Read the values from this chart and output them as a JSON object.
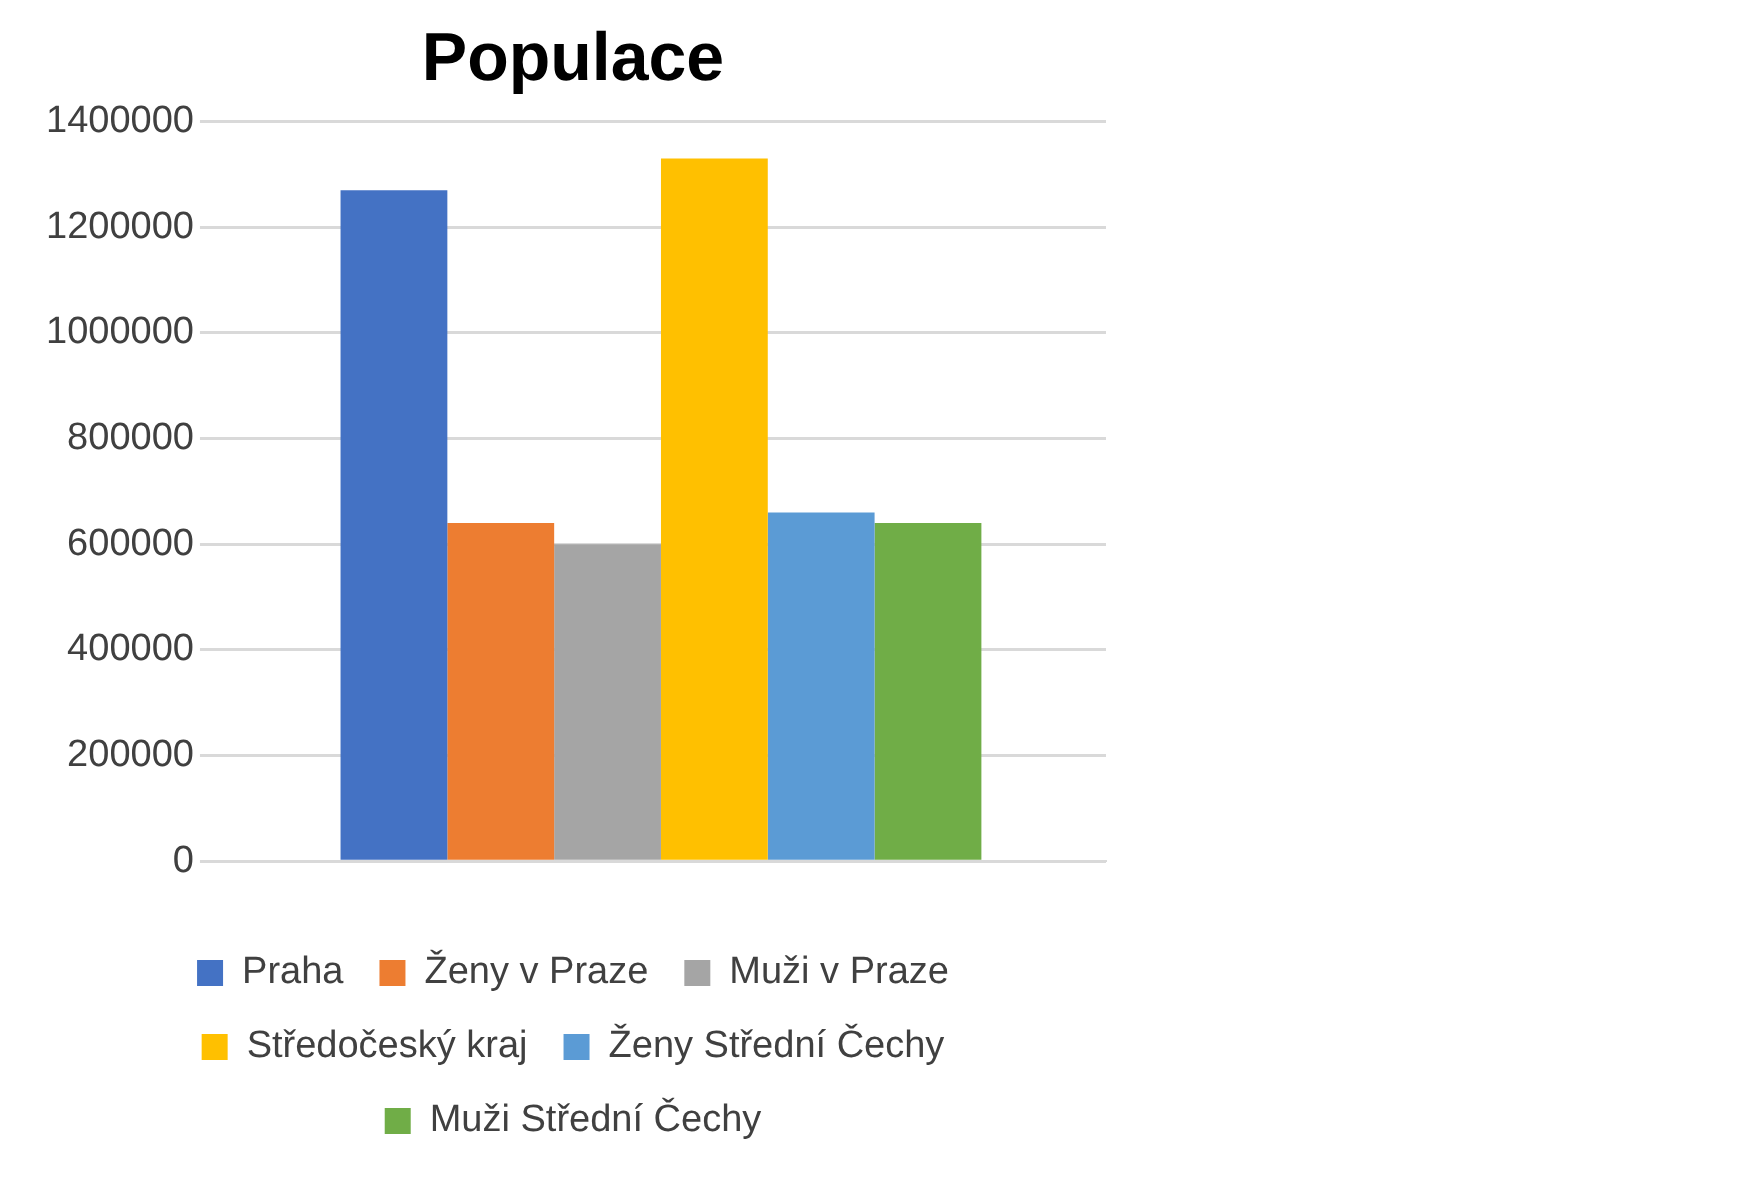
{
  "chart_data": {
    "type": "bar",
    "title": "Populace",
    "categories": [
      null
    ],
    "series": [
      {
        "name": "Praha",
        "color": "#4472c4",
        "values": [
          1270000
        ]
      },
      {
        "name": "Ženy v Praze",
        "color": "#ed7d31",
        "values": [
          640000
        ]
      },
      {
        "name": "Muži v Praze",
        "color": "#a5a5a5",
        "values": [
          600000
        ]
      },
      {
        "name": "Středočeský kraj",
        "color": "#ffc000",
        "values": [
          1330000
        ]
      },
      {
        "name": "Ženy Střední Čechy",
        "color": "#5b9bd5",
        "values": [
          660000
        ]
      },
      {
        "name": "Muži Střední Čechy",
        "color": "#70ad47",
        "values": [
          640000
        ]
      }
    ],
    "ylim": [
      0,
      1400000
    ],
    "yticks": [
      0,
      200000,
      400000,
      600000,
      800000,
      1000000,
      1200000,
      1400000
    ],
    "grid": "y",
    "legend": "bottom"
  }
}
